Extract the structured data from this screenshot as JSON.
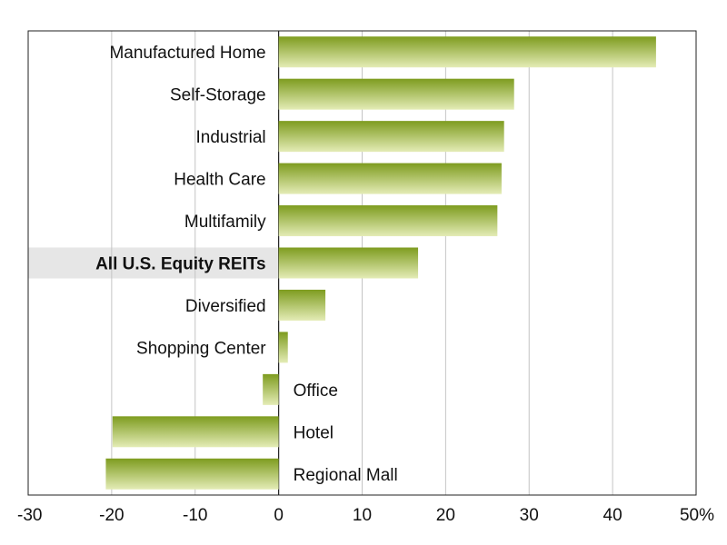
{
  "chart_data": {
    "type": "bar",
    "orientation": "horizontal",
    "title": "",
    "xlabel": "",
    "ylabel": "",
    "categories": [
      "Manufactured Home",
      "Self-Storage",
      "Industrial",
      "Health Care",
      "Multifamily",
      "All U.S. Equity REITs",
      "Diversified",
      "Shopping Center",
      "Office",
      "Hotel",
      "Regional Mall"
    ],
    "values": [
      45.2,
      28.2,
      27.0,
      26.7,
      26.2,
      16.7,
      5.6,
      1.1,
      -1.9,
      -19.9,
      -20.7
    ],
    "highlight_category": "All U.S. Equity REITs",
    "xlim": [
      -30,
      50
    ],
    "xticks": [
      -30,
      -20,
      -10,
      0,
      10,
      20,
      30,
      40,
      50
    ],
    "xtick_labels": [
      "-30",
      "-20",
      "-10",
      "0",
      "10",
      "20",
      "30",
      "40",
      "50%"
    ],
    "grid": true,
    "colors": {
      "bar_top": "#7e9c1f",
      "bar_bottom": "#e4ecb6",
      "grid": "#c4c4c4",
      "highlight_band": "#e6e6e6",
      "axis": "#222222"
    }
  }
}
